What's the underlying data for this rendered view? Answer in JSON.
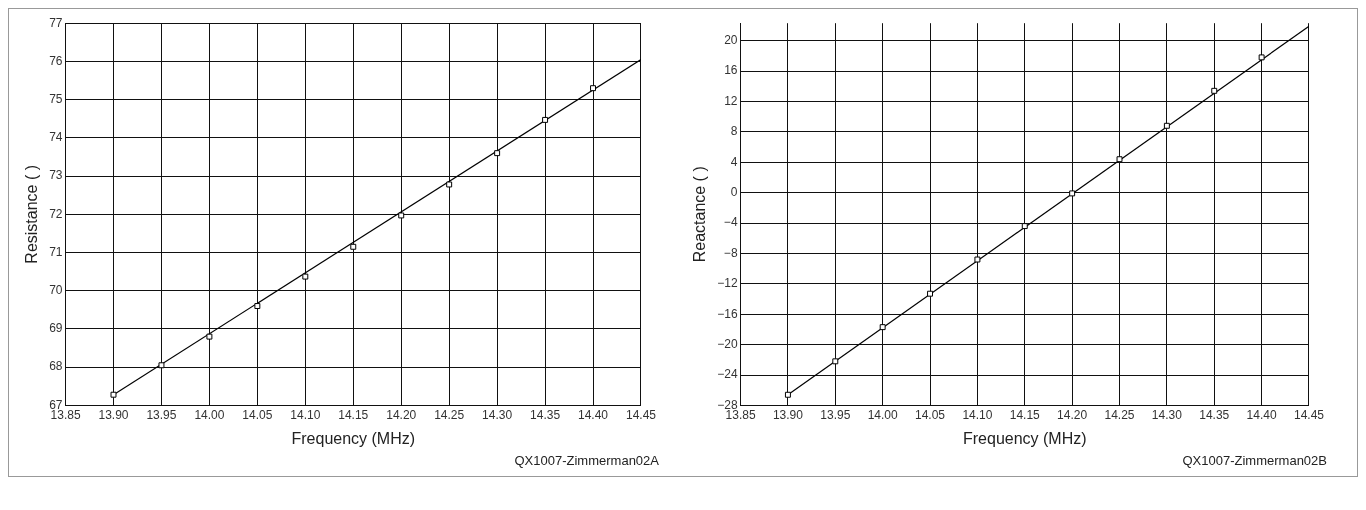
{
  "chart_data": [
    {
      "type": "scatter",
      "xlabel": "Frequency (MHz)",
      "ylabel": "Resistance ( )",
      "annotations": [
        "QX1007-Zimmerman02A"
      ],
      "grid": true,
      "xlim": [
        13.85,
        14.45
      ],
      "ylim": [
        67,
        77
      ],
      "xticks": [
        13.85,
        {
          "value": 13.9,
          "label": "13.90"
        },
        13.95,
        {
          "value": 14.0,
          "label": "14.00"
        },
        14.05,
        {
          "value": 14.1,
          "label": "14.10"
        },
        14.15,
        {
          "value": 14.2,
          "label": "14.20"
        },
        14.25,
        {
          "value": 14.3,
          "label": "14.30"
        },
        14.35,
        {
          "value": 14.4,
          "label": "14.40"
        },
        14.45
      ],
      "yticks": [
        67,
        68,
        69,
        70,
        71,
        72,
        73,
        74,
        75,
        76,
        77
      ],
      "series": [
        {
          "type": "scatter",
          "color": "#000000",
          "marker": "square",
          "x": [
            13.9,
            13.95,
            14.0,
            14.05,
            14.1,
            14.15,
            14.2,
            14.25,
            14.3,
            14.35,
            14.4
          ],
          "values": [
            67.28,
            68.05,
            68.8,
            69.6,
            70.37,
            71.15,
            71.97,
            72.78,
            73.6,
            74.47,
            75.3
          ]
        },
        {
          "type": "line",
          "color": "#000000",
          "marker": "none",
          "line_style": "solid",
          "x": [
            13.9,
            14.45
          ],
          "values": [
            67.28,
            76.05
          ]
        }
      ]
    },
    {
      "type": "scatter",
      "xlabel": "Frequency (MHz)",
      "ylabel": "Reactance ( )",
      "annotations": [
        "QX1007-Zimmerman02B"
      ],
      "grid": true,
      "xlim": [
        13.85,
        14.45
      ],
      "ylim": [
        -28,
        22.3
      ],
      "xticks": [
        13.85,
        {
          "value": 13.9,
          "label": "13.90"
        },
        13.95,
        {
          "value": 14.0,
          "label": "14.00"
        },
        14.05,
        {
          "value": 14.1,
          "label": "14.10"
        },
        14.15,
        {
          "value": 14.2,
          "label": "14.20"
        },
        14.25,
        {
          "value": 14.3,
          "label": "14.30"
        },
        14.35,
        {
          "value": 14.4,
          "label": "14.40"
        },
        14.45
      ],
      "yticks": [
        {
          "value": -28,
          "label": "−28"
        },
        {
          "value": -24,
          "label": "−24"
        },
        {
          "value": -20,
          "label": "−20"
        },
        {
          "value": -16,
          "label": "−16"
        },
        {
          "value": -12,
          "label": "−12"
        },
        {
          "value": -8,
          "label": "−8"
        },
        {
          "value": -4,
          "label": "−4"
        },
        0,
        4,
        8,
        12,
        16,
        20
      ],
      "series": [
        {
          "type": "scatter",
          "color": "#000000",
          "marker": "square",
          "x": [
            13.9,
            13.95,
            14.0,
            14.05,
            14.1,
            14.15,
            14.2,
            14.25,
            14.3,
            14.35,
            14.4
          ],
          "values": [
            -26.6,
            -22.2,
            -17.7,
            -13.3,
            -8.8,
            -4.4,
            -0.1,
            4.4,
            8.8,
            13.4,
            17.8
          ]
        },
        {
          "type": "line",
          "color": "#000000",
          "marker": "none",
          "line_style": "solid",
          "x": [
            13.9,
            14.45
          ],
          "values": [
            -26.6,
            21.9
          ]
        }
      ]
    }
  ]
}
